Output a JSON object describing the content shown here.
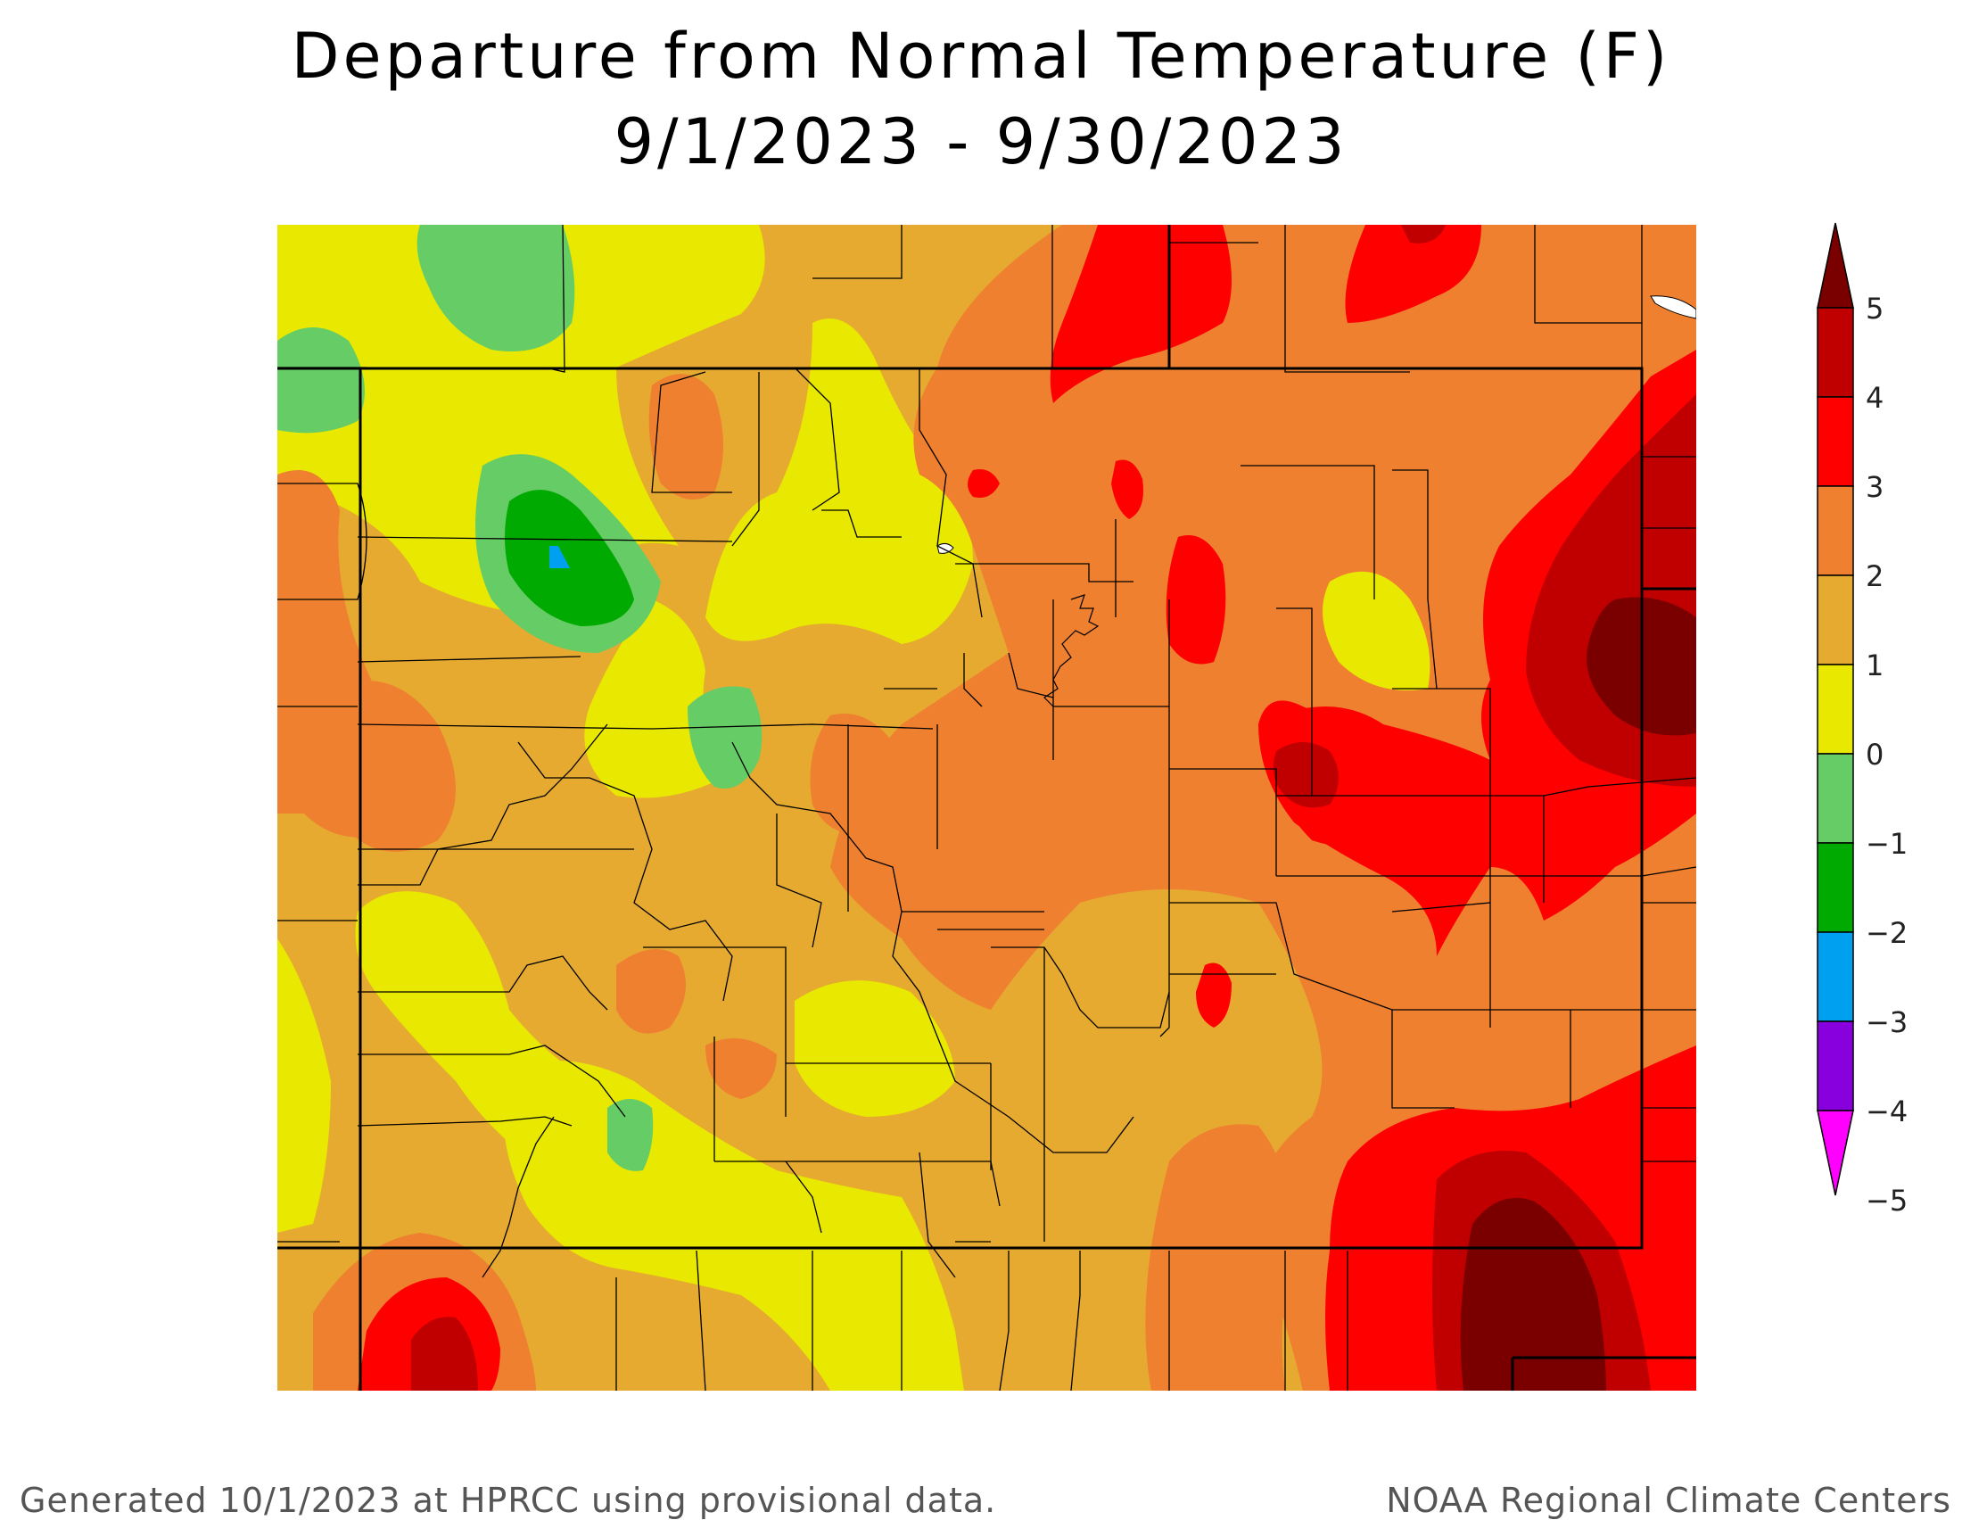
{
  "title": "Departure from Normal Temperature (F)",
  "subtitle": "9/1/2023 - 9/30/2023",
  "legend": {
    "labels": [
      "5",
      "4",
      "3",
      "2",
      "1",
      "0",
      "−1",
      "−2",
      "−3",
      "−4",
      "−5"
    ],
    "colors": [
      "#7a0000",
      "#c00000",
      "#ff0000",
      "#ee8030",
      "#e6aa30",
      "#e8e800",
      "#66cc66",
      "#00aa00",
      "#00a0f0",
      "#8800dd",
      "#ff00ff"
    ]
  },
  "palette": {
    "base": "#e6aa30",
    "warm2": "#ee8030",
    "warm3": "#ff0000",
    "warm4": "#c00000",
    "warm5": "#7a0000",
    "cool0": "#e8e800",
    "cool1": "#66cc66",
    "cool2": "#00aa00",
    "cool3": "#00a0f0"
  },
  "footer": {
    "left": "Generated 10/1/2023 at HPRCC using provisional data.",
    "right": "NOAA Regional Climate Centers"
  }
}
